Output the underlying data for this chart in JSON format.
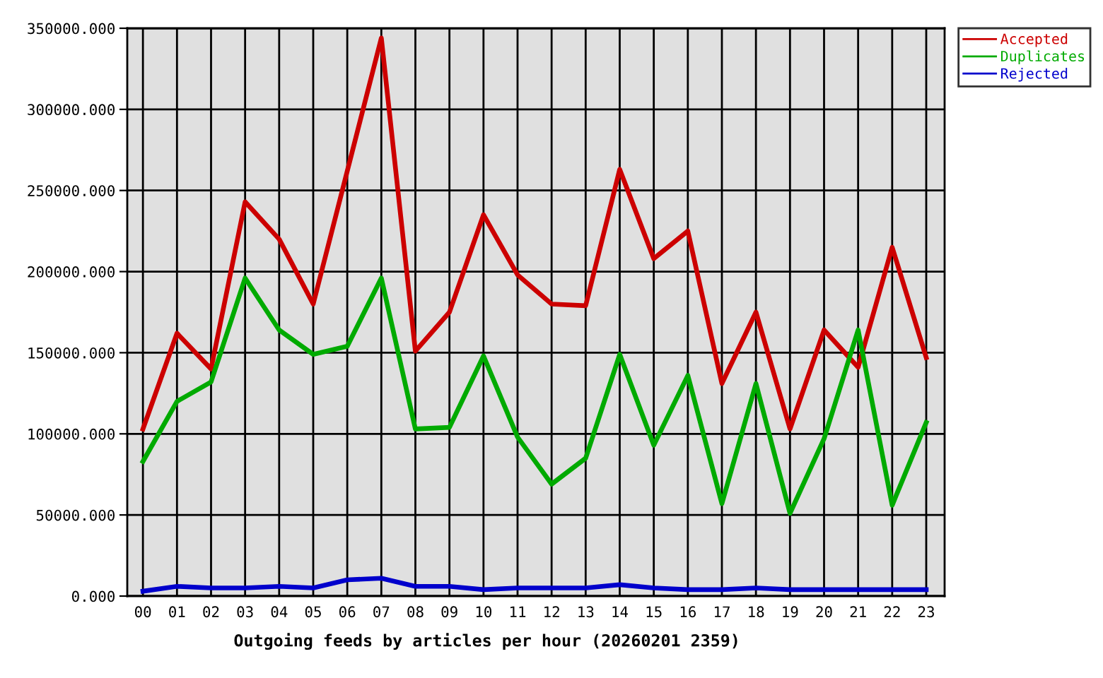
{
  "chart_data": {
    "type": "line",
    "xlabel": "Outgoing feeds by articles per hour (20260201 2359)",
    "categories": [
      "00",
      "01",
      "02",
      "03",
      "04",
      "05",
      "06",
      "07",
      "08",
      "09",
      "10",
      "11",
      "12",
      "13",
      "14",
      "15",
      "16",
      "17",
      "18",
      "19",
      "20",
      "21",
      "22",
      "23"
    ],
    "series": [
      {
        "name": "Accepted",
        "color": "#cc0000",
        "values": [
          103000,
          162000,
          140000,
          243000,
          220000,
          180000,
          262000,
          344000,
          151000,
          175000,
          235000,
          198000,
          180000,
          179000,
          263000,
          208000,
          225000,
          131000,
          175000,
          103000,
          164000,
          141000,
          215000,
          147000
        ]
      },
      {
        "name": "Duplicates",
        "color": "#00aa00",
        "values": [
          83000,
          120000,
          132000,
          196000,
          164000,
          149000,
          154000,
          196000,
          103000,
          104000,
          148000,
          98000,
          69000,
          85000,
          149000,
          93000,
          136000,
          57000,
          131000,
          51000,
          97000,
          164000,
          56000,
          107000
        ]
      },
      {
        "name": "Rejected",
        "color": "#0000cc",
        "values": [
          3000,
          6000,
          5000,
          5000,
          6000,
          5000,
          10000,
          11000,
          6000,
          6000,
          4000,
          5000,
          5000,
          5000,
          7000,
          5000,
          4000,
          4000,
          5000,
          4000,
          4000,
          4000,
          4000,
          4000
        ]
      }
    ],
    "ylim": [
      0,
      350000
    ],
    "yticks": [
      {
        "value": 0,
        "label": "0.000"
      },
      {
        "value": 50000,
        "label": "50000.000"
      },
      {
        "value": 100000,
        "label": "100000.000"
      },
      {
        "value": 150000,
        "label": "150000.000"
      },
      {
        "value": 200000,
        "label": "200000.000"
      },
      {
        "value": 250000,
        "label": "250000.000"
      },
      {
        "value": 300000,
        "label": "300000.000"
      },
      {
        "value": 350000,
        "label": "350000.000"
      }
    ],
    "grid": true,
    "legend": "top right",
    "line_style": "solid"
  }
}
